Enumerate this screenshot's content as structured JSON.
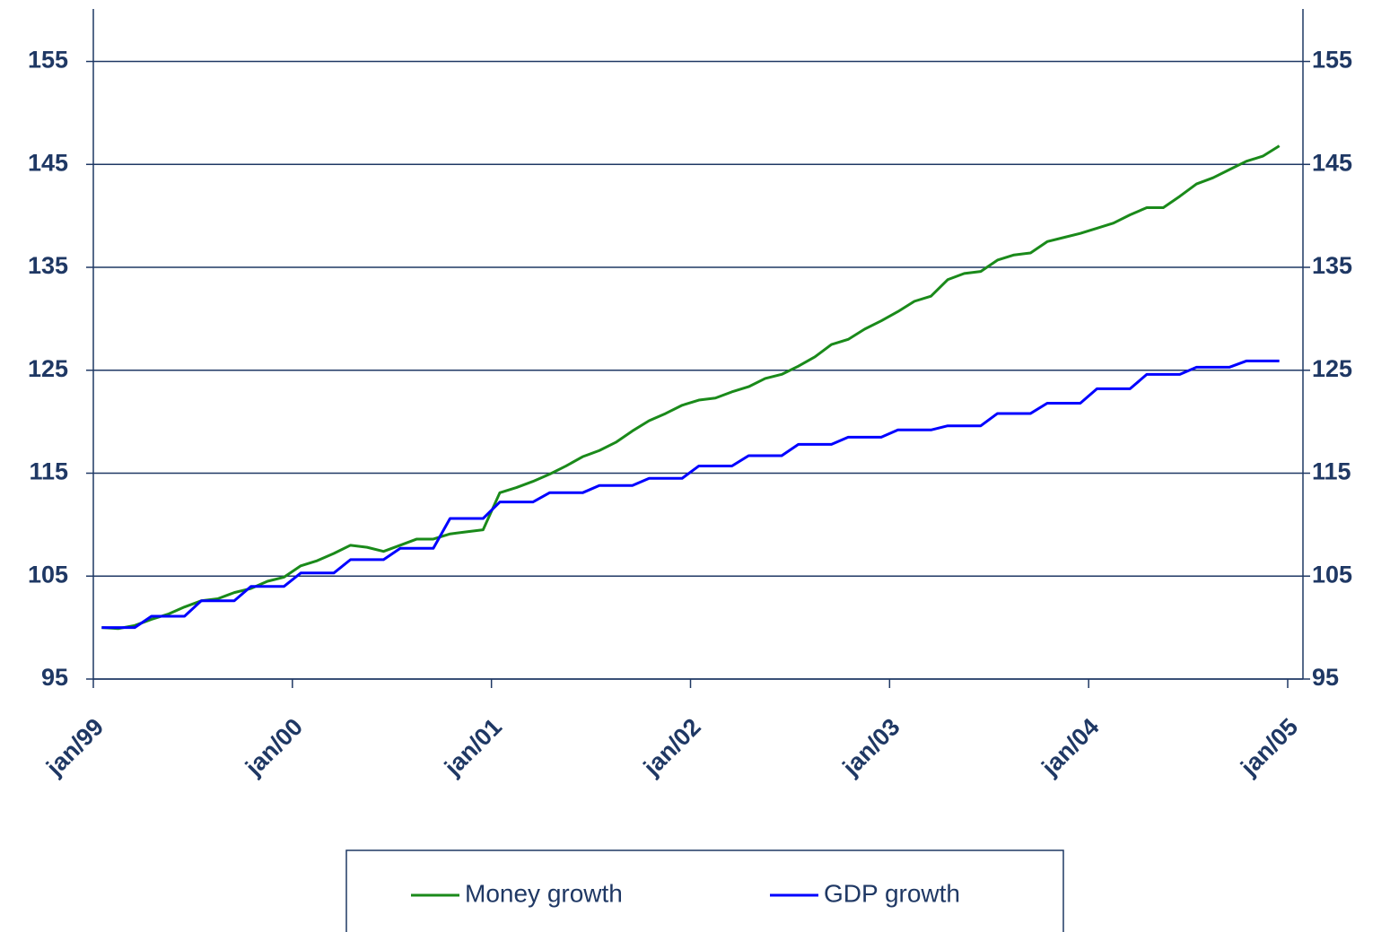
{
  "chart_data": {
    "type": "line",
    "x": [
      1999.042,
      1999.125,
      1999.208,
      1999.292,
      1999.375,
      1999.458,
      1999.542,
      1999.625,
      1999.708,
      1999.792,
      1999.875,
      1999.958,
      2000.042,
      2000.125,
      2000.208,
      2000.292,
      2000.375,
      2000.458,
      2000.542,
      2000.625,
      2000.708,
      2000.792,
      2000.875,
      2000.958,
      2001.042,
      2001.125,
      2001.208,
      2001.292,
      2001.375,
      2001.458,
      2001.542,
      2001.625,
      2001.708,
      2001.792,
      2001.875,
      2001.958,
      2002.042,
      2002.125,
      2002.208,
      2002.292,
      2002.375,
      2002.458,
      2002.542,
      2002.625,
      2002.708,
      2002.792,
      2002.875,
      2002.958,
      2003.042,
      2003.125,
      2003.208,
      2003.292,
      2003.375,
      2003.458,
      2003.542,
      2003.625,
      2003.708,
      2003.792,
      2003.875,
      2003.958,
      2004.042,
      2004.125,
      2004.208,
      2004.292,
      2004.375,
      2004.458,
      2004.542,
      2004.625,
      2004.708,
      2004.792,
      2004.875,
      2004.958
    ],
    "series": [
      {
        "name": "Money growth",
        "color": "#1a8a1a",
        "values": [
          100,
          99.9,
          100.2,
          100.8,
          101.3,
          102,
          102.6,
          102.8,
          103.4,
          103.8,
          104.5,
          104.9,
          106,
          106.5,
          107.2,
          108,
          107.8,
          107.4,
          108,
          108.6,
          108.6,
          109.1,
          109.3,
          109.5,
          113.1,
          113.6,
          114.2,
          114.9,
          115.7,
          116.6,
          117.2,
          118,
          119.1,
          120.1,
          120.8,
          121.6,
          122.1,
          122.3,
          122.9,
          123.4,
          124.2,
          124.6,
          125.4,
          126.3,
          127.5,
          128,
          129,
          129.8,
          130.7,
          131.7,
          132.2,
          133.8,
          134.4,
          134.6,
          135.7,
          136.2,
          136.4,
          137.5,
          137.9,
          138.3,
          138.8,
          139.3,
          140.1,
          140.8,
          140.8,
          141.9,
          143.1,
          143.7,
          144.5,
          145.3,
          145.8,
          146.8
        ]
      },
      {
        "name": "GDP growth",
        "color": "#0000ff",
        "values": [
          100,
          100,
          100,
          101.1,
          101.1,
          101.1,
          102.6,
          102.6,
          102.6,
          104,
          104,
          104,
          105.3,
          105.3,
          105.3,
          106.6,
          106.6,
          106.6,
          107.7,
          107.7,
          107.7,
          110.6,
          110.6,
          110.6,
          112.2,
          112.2,
          112.2,
          113.1,
          113.1,
          113.1,
          113.8,
          113.8,
          113.8,
          114.5,
          114.5,
          114.5,
          115.7,
          115.7,
          115.7,
          116.7,
          116.7,
          116.7,
          117.8,
          117.8,
          117.8,
          118.5,
          118.5,
          118.5,
          119.2,
          119.2,
          119.2,
          119.6,
          119.6,
          119.6,
          120.8,
          120.8,
          120.8,
          121.8,
          121.8,
          121.8,
          123.2,
          123.2,
          123.2,
          124.6,
          124.6,
          124.6,
          125.3,
          125.3,
          125.3,
          125.9,
          125.9,
          125.9
        ]
      }
    ],
    "xlim": [
      1999,
      2005
    ],
    "xticks": [
      {
        "value": 1999,
        "label": "jan/99"
      },
      {
        "value": 2000,
        "label": "jan/00"
      },
      {
        "value": 2001,
        "label": "jan/01"
      },
      {
        "value": 2002,
        "label": "jan/02"
      },
      {
        "value": 2003,
        "label": "jan/03"
      },
      {
        "value": 2004,
        "label": "jan/04"
      },
      {
        "value": 2005,
        "label": "jan/05"
      }
    ],
    "ylim": [
      95,
      160.1
    ],
    "yticks": [
      95,
      105,
      115,
      125,
      135,
      145,
      155
    ],
    "y2lim": [
      95,
      160.1
    ],
    "y2ticks": [
      95,
      105,
      115,
      125,
      135,
      145,
      155
    ],
    "grid": true,
    "legend": "bottom"
  }
}
